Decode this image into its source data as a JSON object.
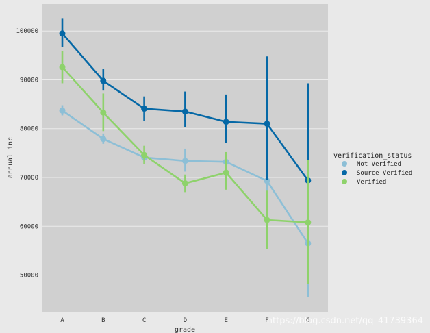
{
  "chart_data": {
    "type": "line",
    "xlabel": "grade",
    "ylabel": "annual_inc",
    "categories": [
      "A",
      "B",
      "C",
      "D",
      "E",
      "F",
      "G"
    ],
    "ylim": [
      42500,
      105500
    ],
    "yticks": [
      50000,
      60000,
      70000,
      80000,
      90000,
      100000
    ],
    "yticklabels": [
      "50000",
      "60000",
      "70000",
      "80000",
      "90000",
      "100000"
    ],
    "grid": true,
    "legend": {
      "title": "verification_status",
      "placement": "right"
    },
    "series": [
      {
        "name": "Not Verified",
        "color": "#8dbfd6",
        "values": [
          83700,
          77900,
          74100,
          73400,
          73200,
          69300,
          56500
        ],
        "err_low": [
          82700,
          76900,
          73300,
          71200,
          71500,
          63500,
          45500
        ],
        "err_high": [
          84800,
          79000,
          75000,
          75900,
          74800,
          72500,
          68500
        ]
      },
      {
        "name": "Source Verified",
        "color": "#0568a6",
        "values": [
          99500,
          89800,
          84100,
          83500,
          81400,
          81000,
          69400
        ],
        "err_low": [
          96800,
          87800,
          81600,
          80300,
          77100,
          69500,
          56000
        ],
        "err_high": [
          102500,
          92300,
          86600,
          87600,
          87000,
          94800,
          89300
        ]
      },
      {
        "name": "Verified",
        "color": "#8ed26b",
        "values": [
          92600,
          83300,
          74600,
          68800,
          71000,
          61300,
          60800
        ],
        "err_low": [
          89300,
          79500,
          72700,
          67000,
          67500,
          55300,
          48200
        ],
        "err_high": [
          95900,
          87200,
          76500,
          70600,
          75200,
          67300,
          73600
        ]
      }
    ]
  },
  "watermark": "https://blog.csdn.net/qq_41739364"
}
